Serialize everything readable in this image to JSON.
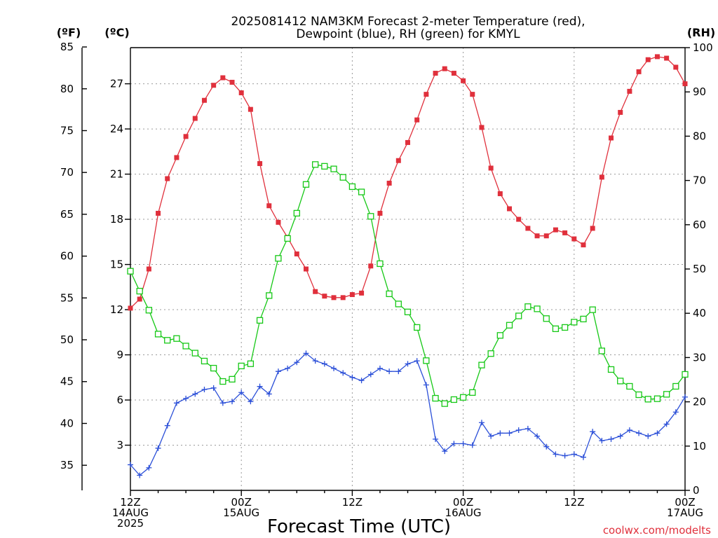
{
  "chart_data": {
    "type": "line",
    "title": [
      "2025081412 NAM3KM Forecast 2-meter Temperature (red),",
      "Dewpoint (blue), RH (green) for KMYL"
    ],
    "xlabel": "Forecast Time (UTC)",
    "credit": "coolwx.com/modelts",
    "y_units": {
      "left_f": "(ºF)",
      "left_c": "(ºC)",
      "right_rh": "(RH)"
    },
    "f_ticks": [
      35,
      40,
      45,
      50,
      55,
      60,
      65,
      70,
      75,
      80,
      85
    ],
    "c_ticks": [
      3,
      6,
      9,
      12,
      15,
      18,
      21,
      24,
      27
    ],
    "rh_ticks": [
      0,
      10,
      20,
      30,
      40,
      50,
      60,
      70,
      80,
      90,
      100
    ],
    "ylim_c": [
      0,
      29.4
    ],
    "ylim_rh": [
      0,
      100
    ],
    "xlim_hours": [
      0,
      60
    ],
    "x_ticks": [
      {
        "hour": 0,
        "lines": [
          "12Z",
          "14AUG",
          "2025"
        ]
      },
      {
        "hour": 12,
        "lines": [
          "00Z",
          "15AUG"
        ]
      },
      {
        "hour": 24,
        "lines": [
          "12Z"
        ]
      },
      {
        "hour": 36,
        "lines": [
          "00Z",
          "16AUG"
        ]
      },
      {
        "hour": 48,
        "lines": [
          "12Z"
        ]
      },
      {
        "hour": 60,
        "lines": [
          "00Z",
          "17AUG"
        ]
      }
    ],
    "x_hours": [
      0,
      1,
      2,
      3,
      4,
      5,
      6,
      7,
      8,
      9,
      10,
      11,
      12,
      13,
      14,
      15,
      16,
      17,
      18,
      19,
      20,
      21,
      22,
      23,
      24,
      25,
      26,
      27,
      28,
      29,
      30,
      31,
      32,
      33,
      34,
      35,
      36,
      37,
      38,
      39,
      40,
      41,
      42,
      43,
      44,
      45,
      46,
      47,
      48,
      49,
      50,
      51,
      52,
      53,
      54,
      55,
      56,
      57,
      58,
      59,
      60
    ],
    "series": [
      {
        "name": "Temperature (red)",
        "unit": "C",
        "color": "#e0303c",
        "marker": "filled-square",
        "values": [
          12.1,
          12.7,
          14.7,
          18.4,
          20.7,
          22.1,
          23.5,
          24.7,
          25.9,
          26.9,
          27.4,
          27.1,
          26.4,
          25.3,
          21.7,
          18.9,
          17.8,
          16.8,
          15.7,
          14.7,
          13.2,
          12.9,
          12.8,
          12.8,
          13.0,
          13.1,
          14.9,
          18.4,
          20.4,
          21.9,
          23.1,
          24.6,
          26.3,
          27.7,
          28.0,
          27.7,
          27.2,
          26.3,
          24.1,
          21.4,
          19.7,
          18.7,
          18.0,
          17.4,
          16.9,
          16.9,
          17.3,
          17.1,
          16.7,
          16.3,
          17.4,
          20.8,
          23.4,
          25.1,
          26.5,
          27.8,
          28.6,
          28.8,
          28.7,
          28.1,
          27.0
        ]
      },
      {
        "name": "Dewpoint (blue)",
        "unit": "C",
        "color": "#2b4fd8",
        "marker": "plus",
        "values": [
          1.7,
          1.0,
          1.5,
          2.8,
          4.3,
          5.8,
          6.1,
          6.4,
          6.7,
          6.8,
          5.8,
          5.9,
          6.5,
          5.9,
          6.9,
          6.4,
          7.9,
          8.1,
          8.5,
          9.1,
          8.6,
          8.4,
          8.1,
          7.8,
          7.5,
          7.3,
          7.7,
          8.1,
          7.9,
          7.9,
          8.4,
          8.6,
          7.0,
          3.4,
          2.6,
          3.1,
          3.1,
          3.0,
          4.5,
          3.6,
          3.8,
          3.8,
          4.0,
          4.1,
          3.6,
          2.9,
          2.4,
          2.3,
          2.4,
          2.2,
          3.9,
          3.3,
          3.4,
          3.6,
          4.0,
          3.8,
          3.6,
          3.8,
          4.4,
          5.2,
          6.2
        ]
      },
      {
        "name": "RH (green)",
        "unit": "%",
        "color": "#16c816",
        "marker": "open-square",
        "values": [
          49.5,
          45.0,
          40.7,
          35.3,
          33.9,
          34.3,
          32.6,
          31.0,
          29.2,
          27.6,
          24.6,
          25.1,
          28.1,
          28.6,
          38.4,
          44.0,
          52.4,
          56.9,
          62.6,
          69.1,
          73.6,
          73.2,
          72.6,
          70.7,
          68.6,
          67.4,
          61.9,
          51.2,
          44.4,
          42.1,
          40.3,
          36.8,
          29.3,
          20.8,
          19.6,
          20.5,
          21.0,
          22.1,
          28.3,
          30.9,
          35.0,
          37.3,
          39.4,
          41.5,
          41.0,
          38.8,
          36.5,
          36.8,
          38.0,
          38.7,
          40.8,
          31.5,
          27.3,
          24.7,
          23.5,
          21.6,
          20.6,
          20.7,
          21.7,
          23.5,
          26.2
        ]
      }
    ],
    "grid": true
  }
}
